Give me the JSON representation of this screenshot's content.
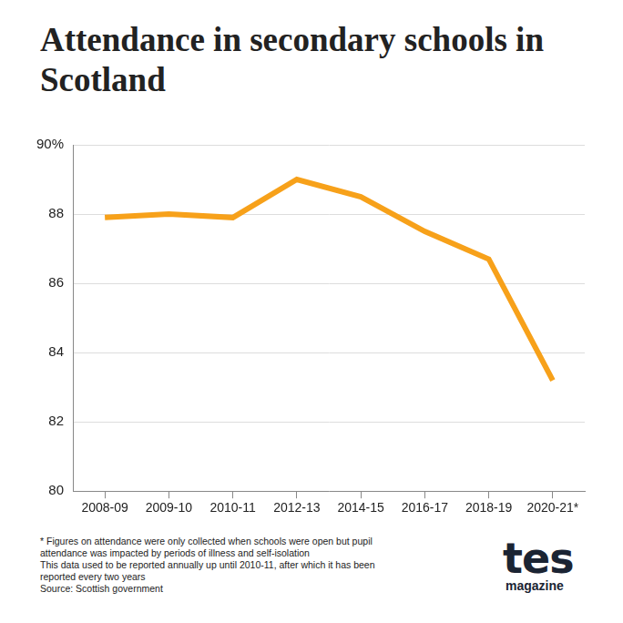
{
  "chart_data": {
    "type": "line",
    "title": "Attendance in secondary schools in Scotland",
    "categories": [
      "2008-09",
      "2009-10",
      "2010-11",
      "2012-13",
      "2014-15",
      "2016-17",
      "2018-19",
      "2020-21*"
    ],
    "values": [
      87.9,
      88.0,
      87.9,
      89.0,
      88.5,
      87.5,
      86.7,
      83.2
    ],
    "color": "#f7a11a",
    "ylim": [
      80,
      90
    ],
    "yticks": [
      80,
      82,
      84,
      86,
      88,
      {
        "value": 90,
        "label": "90%"
      }
    ],
    "grid": true,
    "annotations": [
      "* Figures on attendance were only collected when schools were open but pupil attendance was impacted by periods of illness and self-isolation",
      "This data used to be reported annually up until 2010-11, after which it has been reported every two years",
      "Source: Scottish government"
    ],
    "logo": [
      "tes",
      "magazine"
    ]
  }
}
